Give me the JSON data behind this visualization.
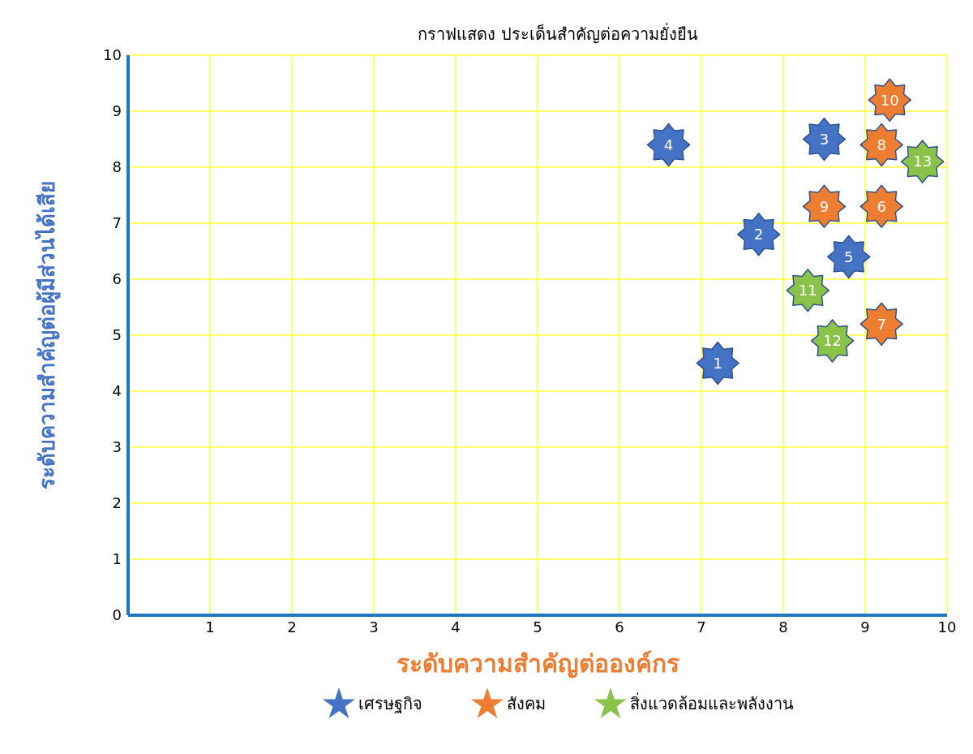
{
  "chart_data": {
    "type": "scatter",
    "title": "กราฟแสดง ประเด็นสำคัญต่อความยั่งยืน",
    "xlabel": "ระดับความสำคัญต่อองค์กร",
    "ylabel": "ระดับความสำคัญต่อผู้มีส่วนได้เสีย",
    "xlim": [
      0,
      10
    ],
    "xticks": [
      {
        "value": 0,
        "label": null
      },
      1,
      2,
      3,
      4,
      5,
      6,
      7,
      8,
      9,
      10
    ],
    "ylim": [
      0,
      10
    ],
    "yticks": [
      0,
      1,
      2,
      3,
      4,
      5,
      6,
      7,
      8,
      9,
      10
    ],
    "grid": true,
    "legend": "bottom",
    "marker": "star",
    "series": [
      {
        "name": "เศรษฐกิจ",
        "color": "#4472c4",
        "x": [
          7.2,
          7.7,
          8.5,
          6.6,
          8.8
        ],
        "values": [
          4.5,
          6.8,
          8.5,
          8.4,
          6.4
        ]
      },
      {
        "name": "สังคม",
        "color": "#ed7d31",
        "x": [
          9.2,
          9.2,
          9.2,
          8.5,
          9.3
        ],
        "values": [
          7.3,
          5.2,
          8.4,
          7.3,
          9.2
        ]
      },
      {
        "name": "สิ่งแวดล้อมและพลังงาน",
        "color": "#8bc34a",
        "x": [
          8.3,
          8.6,
          9.7
        ],
        "values": [
          5.8,
          4.9,
          8.1
        ]
      }
    ],
    "annotations": [
      {
        "text": "1",
        "x": 7.2,
        "y": 4.5
      },
      {
        "text": "2",
        "x": 7.7,
        "y": 6.8
      },
      {
        "text": "3",
        "x": 8.5,
        "y": 8.5
      },
      {
        "text": "4",
        "x": 6.6,
        "y": 8.4
      },
      {
        "text": "5",
        "x": 8.8,
        "y": 6.4
      },
      {
        "text": "6",
        "x": 9.2,
        "y": 7.3
      },
      {
        "text": "7",
        "x": 9.2,
        "y": 5.2
      },
      {
        "text": "8",
        "x": 9.2,
        "y": 8.4
      },
      {
        "text": "9",
        "x": 8.5,
        "y": 7.3
      },
      {
        "text": "10",
        "x": 9.3,
        "y": 9.2
      },
      {
        "text": "11",
        "x": 8.3,
        "y": 5.8
      },
      {
        "text": "12",
        "x": 8.6,
        "y": 4.9
      },
      {
        "text": "13",
        "x": 9.7,
        "y": 8.1
      }
    ]
  }
}
